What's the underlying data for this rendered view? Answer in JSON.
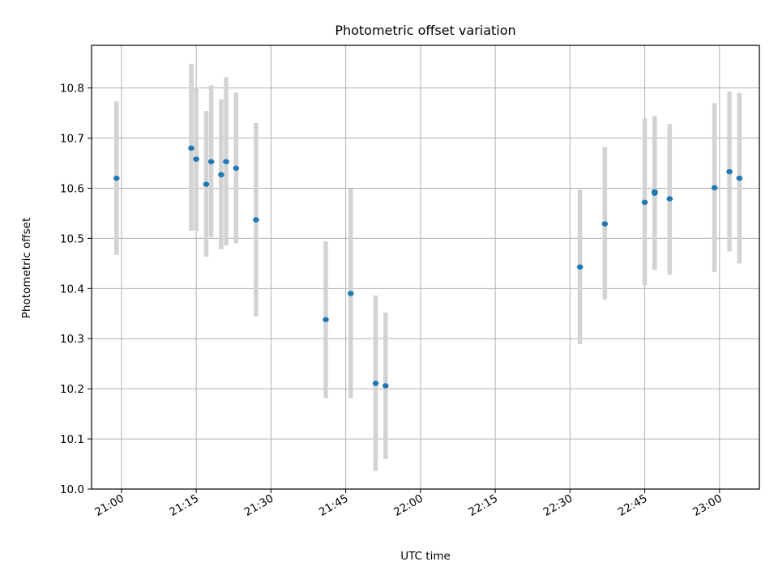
{
  "chart_data": {
    "type": "scatter",
    "title": "Photometric offset variation",
    "xlabel": "UTC time",
    "ylabel": "Photometric offset",
    "xlim": [
      "20:54",
      "23:08"
    ],
    "ylim": [
      10.0,
      10.885
    ],
    "grid": true,
    "x_ticks": [
      "21:00",
      "21:15",
      "21:30",
      "21:45",
      "22:00",
      "22:15",
      "22:30",
      "22:45",
      "23:00"
    ],
    "y_ticks": [
      "10.0",
      "10.1",
      "10.2",
      "10.3",
      "10.4",
      "10.5",
      "10.6",
      "10.7",
      "10.8"
    ],
    "series": [
      {
        "marker_color": "#1f77b4",
        "errorbar_color": "#d3d3d3",
        "points": [
          {
            "time": "20:59",
            "y": 10.62,
            "ylo": 10.467,
            "yhi": 10.773
          },
          {
            "time": "21:14",
            "y": 10.68,
            "ylo": 10.515,
            "yhi": 10.848
          },
          {
            "time": "21:15",
            "y": 10.658,
            "ylo": 10.515,
            "yhi": 10.801
          },
          {
            "time": "21:17",
            "y": 10.608,
            "ylo": 10.463,
            "yhi": 10.754
          },
          {
            "time": "21:18",
            "y": 10.653,
            "ylo": 10.502,
            "yhi": 10.805
          },
          {
            "time": "21:20",
            "y": 10.627,
            "ylo": 10.478,
            "yhi": 10.777
          },
          {
            "time": "21:21",
            "y": 10.653,
            "ylo": 10.486,
            "yhi": 10.821
          },
          {
            "time": "21:23",
            "y": 10.64,
            "ylo": 10.49,
            "yhi": 10.791
          },
          {
            "time": "21:27",
            "y": 10.537,
            "ylo": 10.344,
            "yhi": 10.73
          },
          {
            "time": "21:41",
            "y": 10.338,
            "ylo": 10.181,
            "yhi": 10.494
          },
          {
            "time": "21:46",
            "y": 10.39,
            "ylo": 10.181,
            "yhi": 10.599
          },
          {
            "time": "21:51",
            "y": 10.211,
            "ylo": 10.036,
            "yhi": 10.386
          },
          {
            "time": "21:53",
            "y": 10.206,
            "ylo": 10.06,
            "yhi": 10.352
          },
          {
            "time": "22:32",
            "y": 10.443,
            "ylo": 10.289,
            "yhi": 10.597
          },
          {
            "time": "22:37",
            "y": 10.529,
            "ylo": 10.378,
            "yhi": 10.682
          },
          {
            "time": "22:45",
            "y": 10.572,
            "ylo": 10.406,
            "yhi": 10.74
          },
          {
            "time": "22:47",
            "y": 10.59,
            "ylo": 10.437,
            "yhi": 10.744
          },
          {
            "time": "22:47",
            "y": 10.593,
            "ylo": 10.445,
            "yhi": 10.74
          },
          {
            "time": "22:50",
            "y": 10.579,
            "ylo": 10.428,
            "yhi": 10.728
          },
          {
            "time": "22:59",
            "y": 10.601,
            "ylo": 10.433,
            "yhi": 10.77
          },
          {
            "time": "23:02",
            "y": 10.633,
            "ylo": 10.474,
            "yhi": 10.793
          },
          {
            "time": "23:04",
            "y": 10.62,
            "ylo": 10.45,
            "yhi": 10.79
          }
        ]
      }
    ]
  }
}
